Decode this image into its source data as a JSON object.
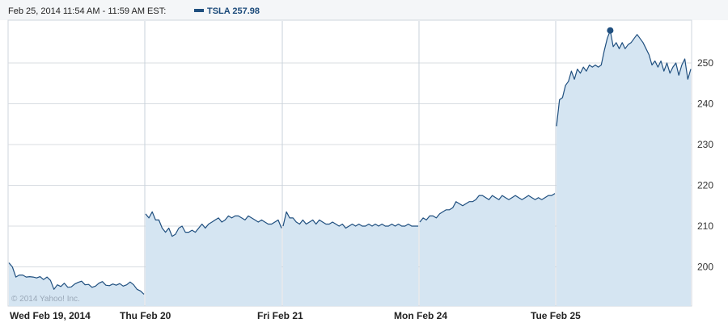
{
  "header": {
    "range_text": "Feb 25, 2014 11:54 AM - 11:59 AM EST:",
    "symbol_value": "TSLA 257.98"
  },
  "watermark": "© 2014 Yahoo! Inc.",
  "colors": {
    "line": "#1f4f7f",
    "fill": "#d5e5f2",
    "grid": "#d8dce2",
    "session_divider": "#ffffff",
    "marker": "#1f4f7f"
  },
  "chart_data": {
    "type": "area",
    "title": "",
    "xlabel": "",
    "ylabel": "",
    "ylim": [
      190.4,
      260.5
    ],
    "y_ticks": [
      200,
      210,
      220,
      230,
      240,
      250
    ],
    "y_tick_labels": [
      "200",
      "210",
      "220",
      "230",
      "240",
      "250"
    ],
    "x_day_labels": [
      "Wed Feb 19, 2014",
      "Thu Feb 20",
      "Fri Feb 21",
      "Mon Feb 24",
      "Tue Feb 25"
    ],
    "grid": true,
    "legend": "header",
    "highlight_point": {
      "label": "TSLA 257.98",
      "value": 257.98
    },
    "series": [
      {
        "name": "TSLA",
        "days": [
          {
            "day": "Wed Feb 19, 2014",
            "values": [
              201,
              200,
              197.5,
              198,
              198,
              197.5,
              197.6,
              197.5,
              197.3,
              197.6,
              196.9,
              197.5,
              196.7,
              194.5,
              195.6,
              195.2,
              196,
              195,
              195.1,
              195.8,
              196.2,
              196.5,
              195.6,
              195.7,
              195,
              195.3,
              196,
              196.4,
              195.5,
              195.4,
              195.8,
              195.5,
              195.9,
              195.3,
              195.6,
              196.3,
              195.6,
              194.5,
              194.1,
              193.3
            ]
          },
          {
            "day": "Thu Feb 20",
            "values": [
              213,
              212,
              213.5,
              211.5,
              211.5,
              209.5,
              208.5,
              209.5,
              207.5,
              208,
              209.5,
              210,
              208.5,
              208.5,
              209,
              208.5,
              209.5,
              210.5,
              209.5,
              210.5,
              211,
              211.5,
              212,
              211,
              211.5,
              212.5,
              212,
              212.5,
              212.5,
              212,
              211.5,
              212.5,
              212,
              211.5,
              211,
              211.5,
              211,
              210.5,
              210.5,
              211,
              211.5,
              209.5
            ]
          },
          {
            "day": "Fri Feb 21",
            "values": [
              210,
              213.5,
              212,
              212,
              211,
              210.5,
              211.5,
              210.5,
              211,
              211.5,
              210.5,
              211.5,
              211,
              210.5,
              210.5,
              211,
              210.5,
              210,
              210.5,
              209.5,
              210,
              210.5,
              210,
              210.5,
              210,
              210,
              210.5,
              210,
              210.5,
              210,
              210.5,
              210,
              210,
              210.5,
              210,
              210.5,
              210,
              210,
              210.5,
              210,
              210,
              210
            ]
          },
          {
            "day": "Mon Feb 24",
            "values": [
              211,
              212,
              211.5,
              212.5,
              212.5,
              212,
              213,
              213.5,
              214,
              214,
              214.5,
              216,
              215.5,
              215,
              215.5,
              216,
              216,
              216.5,
              217.5,
              217.5,
              217,
              216.5,
              217.5,
              217,
              216.5,
              217.5,
              217,
              216.5,
              217,
              217.5,
              217,
              216.5,
              217,
              217.5,
              217,
              216.5,
              217,
              216.5,
              217,
              217.5,
              217.5,
              218
            ]
          },
          {
            "day": "Tue Feb 25",
            "values": [
              234.5,
              241,
              241.5,
              244.5,
              245.5,
              248,
              246,
              248.5,
              247.5,
              249,
              248,
              249.5,
              249,
              249.5,
              249,
              249.5,
              253,
              256,
              257.98,
              254,
              255,
              253.5,
              255,
              253.5,
              254.5,
              255,
              256,
              257,
              256,
              255,
              253.5,
              252,
              249.5,
              250.5,
              249,
              250.5,
              248,
              250,
              247.5,
              249,
              250,
              247,
              249.5,
              251,
              246,
              248.5
            ]
          }
        ]
      }
    ]
  }
}
